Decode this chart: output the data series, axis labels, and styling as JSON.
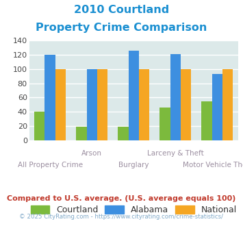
{
  "title_line1": "2010 Courtland",
  "title_line2": "Property Crime Comparison",
  "categories": [
    "All Property Crime",
    "Arson",
    "Burglary",
    "Larceny & Theft",
    "Motor Vehicle Theft"
  ],
  "courtland": [
    40,
    19,
    19,
    46,
    55
  ],
  "alabama": [
    120,
    100,
    126,
    121,
    93
  ],
  "national": [
    100,
    100,
    100,
    100,
    100
  ],
  "bar_colors": {
    "courtland": "#7cba3d",
    "alabama": "#3d8fe0",
    "national": "#f5a623"
  },
  "ylim": [
    0,
    140
  ],
  "yticks": [
    0,
    20,
    40,
    60,
    80,
    100,
    120,
    140
  ],
  "background_color": "#dce9e9",
  "grid_color": "#ffffff",
  "title_color": "#1a8fd1",
  "xlabel_color": "#9b8ea0",
  "legend_labels": [
    "Courtland",
    "Alabama",
    "National"
  ],
  "footnote1": "Compared to U.S. average. (U.S. average equals 100)",
  "footnote2": "© 2025 CityRating.com - https://www.cityrating.com/crime-statistics/",
  "footnote1_color": "#c0392b",
  "footnote2_color": "#7fa8c8"
}
